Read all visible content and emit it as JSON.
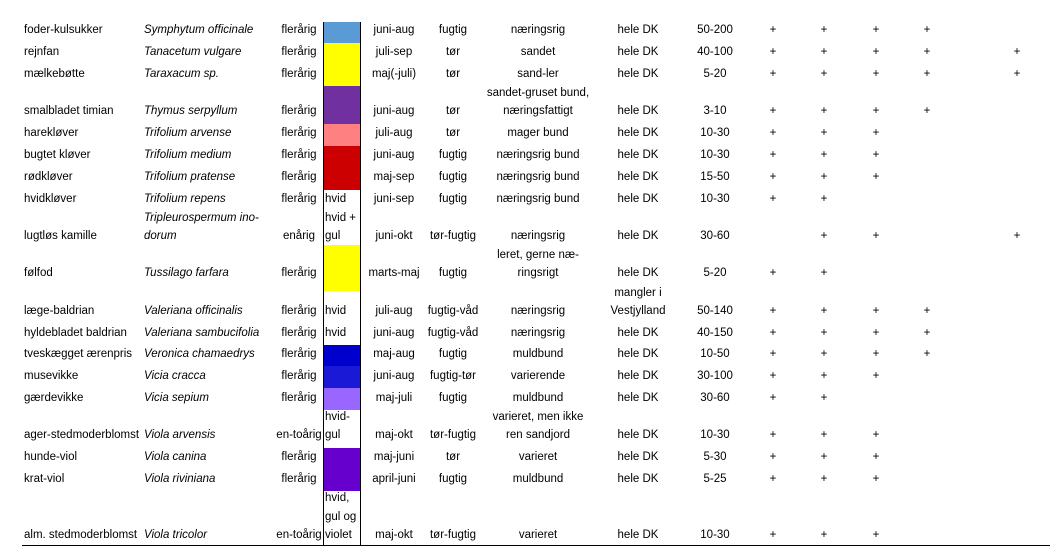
{
  "rows": [
    {
      "name": "foder-kulsukker",
      "latin": "Symphytum officinale",
      "life": "flerårig",
      "flower_text": [],
      "color": "#5b9bd5",
      "time": "juni-aug",
      "moist": "fugtig",
      "soil": [
        "næringsrig"
      ],
      "region": [
        "hele DK"
      ],
      "height": "50-200",
      "plus": [
        "+",
        "+",
        "+",
        "+",
        "",
        ""
      ]
    },
    {
      "name": "rejnfan",
      "latin": "Tanacetum vulgare",
      "life": "flerårig",
      "flower_text": [],
      "color": "#ffff00",
      "time": "juli-sep",
      "moist": "tør",
      "soil": [
        "sandet"
      ],
      "region": [
        "hele DK"
      ],
      "height": "40-100",
      "plus": [
        "+",
        "+",
        "+",
        "+",
        "",
        "+"
      ]
    },
    {
      "name": "mælkebøtte",
      "latin": "Taraxacum  sp.",
      "life": "flerårig",
      "flower_text": [],
      "color": "#ffff00",
      "time": "maj(-juli)",
      "moist": "tør",
      "soil": [
        "sand-ler"
      ],
      "region": [
        "hele DK"
      ],
      "height": "5-20",
      "plus": [
        "+",
        "+",
        "+",
        "+",
        "",
        "+"
      ]
    },
    {
      "name": "smalbladet timian",
      "latin": "Thymus serpyllum",
      "life": "flerårig",
      "flower_text": [],
      "color": "#7030a0",
      "time": "juni-aug",
      "moist": "tør",
      "soil": [
        "sandet-gruset bund,",
        "næringsfattigt"
      ],
      "region": [
        "hele DK"
      ],
      "height": "3-10",
      "plus": [
        "+",
        "+",
        "+",
        "+",
        "",
        ""
      ]
    },
    {
      "name": "harekløver",
      "latin": "Trifolium arvense",
      "life": "flerårig",
      "flower_text": [],
      "color": "#ff8080",
      "time": "juli-aug",
      "moist": "tør",
      "soil": [
        "mager bund"
      ],
      "region": [
        "hele DK"
      ],
      "height": "10-30",
      "plus": [
        "+",
        "+",
        "+",
        "",
        "",
        ""
      ]
    },
    {
      "name": "bugtet kløver",
      "latin": "Trifolium medium",
      "life": "flerårig",
      "flower_text": [],
      "color": "#cc0000",
      "time": "juni-aug",
      "moist": "fugtig",
      "soil": [
        "næringsrig bund"
      ],
      "region": [
        "hele DK"
      ],
      "height": "10-30",
      "plus": [
        "+",
        "+",
        "+",
        "",
        "",
        ""
      ]
    },
    {
      "name": "rødkløver",
      "latin": "Trifolium pratense",
      "life": "flerårig",
      "flower_text": [],
      "color": "#cc0000",
      "time": "maj-sep",
      "moist": "fugtig",
      "soil": [
        "næringsrig bund"
      ],
      "region": [
        "hele DK"
      ],
      "height": "15-50",
      "plus": [
        "+",
        "+",
        "+",
        "",
        "",
        ""
      ]
    },
    {
      "name": "hvidkløver",
      "latin": "Trifolium repens",
      "life": "flerårig",
      "flower_text": [
        "hvid"
      ],
      "color": "",
      "time": "juni-sep",
      "moist": "fugtig",
      "soil": [
        "næringsrig bund"
      ],
      "region": [
        "hele DK"
      ],
      "height": "10-30",
      "plus": [
        "+",
        "+",
        "",
        "",
        "",
        ""
      ]
    },
    {
      "name": "lugtløs kamille",
      "latin_lines": [
        "Tripleurospermum ino-",
        "dorum"
      ],
      "life": "enårig",
      "flower_text": [
        "hvid +",
        "gul"
      ],
      "color": "",
      "time": "juni-okt",
      "moist": "tør-fugtig",
      "soil": [
        "næringsrig"
      ],
      "region": [
        "hele DK"
      ],
      "height": "30-60",
      "plus": [
        "",
        "+",
        "+",
        "",
        "",
        "+"
      ]
    },
    {
      "name": "følfod",
      "latin": "Tussilago farfara",
      "life": "flerårig",
      "flower_text": [],
      "color": "#ffff00",
      "time": "marts-maj",
      "moist": "fugtig",
      "soil": [
        "leret, gerne næ-",
        "ringsrigt"
      ],
      "region": [
        "hele DK"
      ],
      "height": "5-20",
      "plus": [
        "+",
        "+",
        "",
        "",
        "",
        ""
      ]
    },
    {
      "name": "læge-baldrian",
      "latin": "Valeriana officinalis",
      "life": "flerårig",
      "flower_text": [
        "hvid"
      ],
      "color": "",
      "time": "juli-aug",
      "moist": "fugtig-våd",
      "soil": [
        "næringsrig"
      ],
      "region": [
        "mangler i",
        "Vestjylland"
      ],
      "height": "50-140",
      "plus": [
        "+",
        "+",
        "+",
        "+",
        "",
        ""
      ]
    },
    {
      "name": "hyldebladet baldrian",
      "latin": "Valeriana sambucifolia",
      "life": "flerårig",
      "flower_text": [
        "hvid"
      ],
      "color": "",
      "time": "juni-aug",
      "moist": "fugtig-våd",
      "soil": [
        "næringsrig"
      ],
      "region": [
        "hele DK"
      ],
      "height": "40-150",
      "plus": [
        "+",
        "+",
        "+",
        "+",
        "",
        ""
      ]
    },
    {
      "name": "tveskægget ærenpris",
      "latin": "Veronica chamaedrys",
      "life": "flerårig",
      "flower_text": [],
      "color": "#0000cc",
      "time": "maj-aug",
      "moist": "fugtig",
      "soil": [
        "muldbund"
      ],
      "region": [
        "hele DK"
      ],
      "height": "10-50",
      "plus": [
        "+",
        "+",
        "+",
        "+",
        "",
        ""
      ]
    },
    {
      "name": "musevikke",
      "latin": "Vicia cracca",
      "life": "flerårig",
      "flower_text": [],
      "color": "#1a1ad6",
      "time": "juni-aug",
      "moist": "fugtig-tør",
      "soil": [
        "varierende"
      ],
      "region": [
        "hele DK"
      ],
      "height": "30-100",
      "plus": [
        "+",
        "+",
        "+",
        "",
        "",
        ""
      ]
    },
    {
      "name": "gærdevikke",
      "latin": "Vicia sepium",
      "life": "flerårig",
      "flower_text": [],
      "color": "#9966ff",
      "time": "maj-juli",
      "moist": "fugtig",
      "soil": [
        "muldbund"
      ],
      "region": [
        "hele DK"
      ],
      "height": "30-60",
      "plus": [
        "+",
        "+",
        "",
        "",
        "",
        ""
      ]
    },
    {
      "name": "ager-stedmoderblomst",
      "latin": "Viola arvensis",
      "life": "en-toårig",
      "flower_text": [
        "hvid-",
        "gul"
      ],
      "color": "",
      "time": "maj-okt",
      "moist": "tør-fugtig",
      "soil": [
        "varieret, men ikke",
        "ren sandjord"
      ],
      "region": [
        "hele DK"
      ],
      "height": "10-30",
      "plus": [
        "+",
        "+",
        "+",
        "",
        "",
        ""
      ]
    },
    {
      "name": "hunde-viol",
      "latin": "Viola canina",
      "life": "flerårig",
      "flower_text": [],
      "color": "#6600cc",
      "time": "maj-juni",
      "moist": "tør",
      "soil": [
        "varieret"
      ],
      "region": [
        "hele DK"
      ],
      "height": "5-30",
      "plus": [
        "+",
        "+",
        "+",
        "",
        "",
        ""
      ]
    },
    {
      "name": "krat-viol",
      "latin": "Viola riviniana",
      "life": "flerårig",
      "flower_text": [],
      "color": "#6600cc",
      "time": "april-juni",
      "moist": "fugtig",
      "soil": [
        "muldbund"
      ],
      "region": [
        "hele DK"
      ],
      "height": "5-25",
      "plus": [
        "+",
        "+",
        "+",
        "",
        "",
        ""
      ]
    },
    {
      "name": "alm. stedmoderblomst",
      "latin": "Viola tricolor",
      "life": "en-toårig",
      "flower_text": [
        "hvid,",
        "gul og",
        "violet"
      ],
      "color": "",
      "time": "maj-okt",
      "moist": "tør-fugtig",
      "soil": [
        "varieret"
      ],
      "region": [
        "hele DK"
      ],
      "height": "10-30",
      "plus": [
        "+",
        "+",
        "+",
        "",
        "",
        ""
      ]
    }
  ]
}
